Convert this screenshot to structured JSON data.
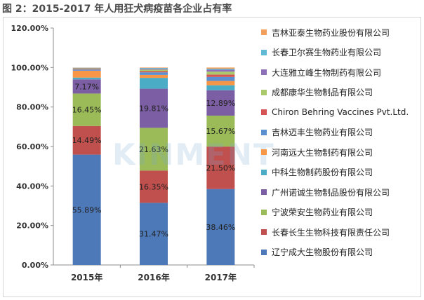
{
  "title": "图 2：2015-2017 年人用狂犬病疫苗各企业占有率",
  "watermark": "KINMENT",
  "chart_data": {
    "type": "bar",
    "stacked": true,
    "categories": [
      "2015年",
      "2016年",
      "2017年"
    ],
    "ylim": [
      0,
      120
    ],
    "yticks": [
      "0.00%",
      "20.00%",
      "40.00%",
      "60.00%",
      "80.00%",
      "100.00%",
      "120.00%"
    ],
    "grid": false,
    "legend_position": "right",
    "series": [
      {
        "name": "辽宁成大生物股份有限公司",
        "color": "#4e79b8",
        "values": [
          55.89,
          31.47,
          38.46
        ],
        "labels": [
          "55.89%",
          "31.47%",
          "38.46%"
        ]
      },
      {
        "name": "长春长生生物科技有限责任公司",
        "color": "#c0504d",
        "values": [
          14.49,
          16.35,
          21.5
        ],
        "labels": [
          "14.49%",
          "16.35%",
          "21.50%"
        ]
      },
      {
        "name": "宁波荣安生物药业有限公司",
        "color": "#9bbb59",
        "values": [
          16.45,
          21.63,
          15.67
        ],
        "labels": [
          "16.45%",
          "21.63%",
          "15.67%"
        ]
      },
      {
        "name": "广州诺诚生物制品股份有限公司",
        "color": "#7b5ea3",
        "values": [
          7.17,
          19.81,
          12.89
        ],
        "labels": [
          "7.17%",
          "19.81%",
          "12.89%"
        ]
      },
      {
        "name": "中科生物制药股份有限公司",
        "color": "#4bacc6",
        "values": [
          0.9,
          5.5,
          2.5
        ],
        "labels": [
          "",
          "",
          ""
        ]
      },
      {
        "name": "河南远大生物制药有限公司",
        "color": "#f79646",
        "values": [
          3.5,
          1.5,
          2.2
        ],
        "labels": [
          "",
          "",
          ""
        ]
      },
      {
        "name": "吉林迈丰生物药业有限公司",
        "color": "#5b8fd0",
        "values": [
          0.6,
          1.3,
          2.0
        ],
        "labels": [
          "",
          "",
          ""
        ]
      },
      {
        "name": "Chiron Behring Vaccines Pvt.Ltd.",
        "color": "#d45551",
        "values": [
          0.3,
          0.6,
          1.2
        ],
        "labels": [
          "",
          "",
          ""
        ]
      },
      {
        "name": "成都康华生物制品有限公司",
        "color": "#a9c96b",
        "values": [
          0.3,
          0.8,
          1.5
        ],
        "labels": [
          "",
          "",
          ""
        ]
      },
      {
        "name": "大连雅立峰生物制药有限公司",
        "color": "#8d6fb7",
        "values": [
          0.2,
          0.5,
          1.0
        ],
        "labels": [
          "",
          "",
          ""
        ]
      },
      {
        "name": "长春卫尔赛生物药业有限公司",
        "color": "#5fbad4",
        "values": [
          0.1,
          0.3,
          0.5
        ],
        "labels": [
          "",
          "",
          ""
        ]
      },
      {
        "name": "吉林亚泰生物药业股份有限公司",
        "color": "#f5a05a",
        "values": [
          0.09,
          0.24,
          0.58
        ],
        "labels": [
          "",
          "",
          ""
        ]
      }
    ]
  }
}
